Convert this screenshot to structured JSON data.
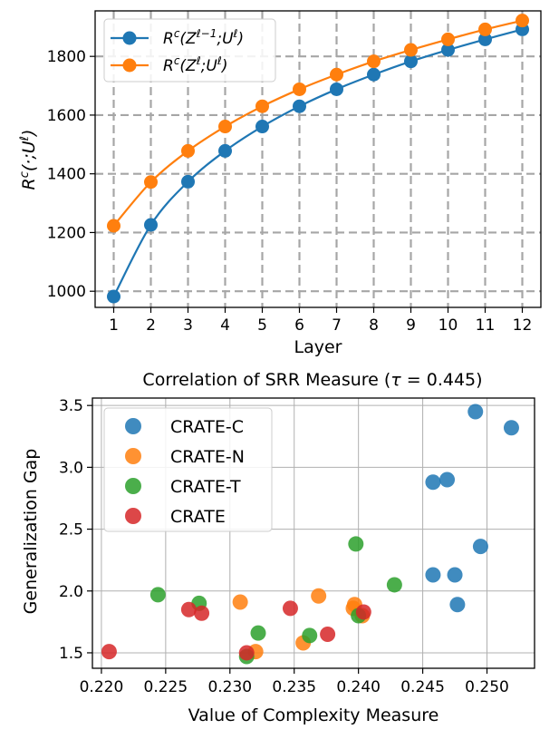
{
  "chart_data": [
    {
      "type": "line",
      "title": "",
      "xlabel": "Layer",
      "ylabel": "R^c(·;U^ℓ)",
      "xlim": [
        0.5,
        12.5
      ],
      "ylim": [
        945,
        1955
      ],
      "x": [
        1,
        2,
        3,
        4,
        5,
        6,
        7,
        8,
        9,
        10,
        11,
        12
      ],
      "xticks": [
        1,
        2,
        3,
        4,
        5,
        6,
        7,
        8,
        9,
        10,
        11,
        12
      ],
      "yticks": [
        1000,
        1200,
        1400,
        1600,
        1800
      ],
      "grid": true,
      "legend_position": "top-left",
      "series": [
        {
          "name": "R^c(Z^{ℓ−1};U^ℓ)",
          "color": "#1f77b4",
          "values": [
            982,
            1226,
            1373,
            1478,
            1561,
            1630,
            1688,
            1738,
            1783,
            1822,
            1858,
            1892
          ]
        },
        {
          "name": "R^c(Z^ℓ;U^ℓ)",
          "color": "#ff7f0e",
          "values": [
            1223,
            1372,
            1478,
            1561,
            1630,
            1688,
            1738,
            1783,
            1822,
            1858,
            1892,
            1922
          ]
        }
      ]
    },
    {
      "type": "scatter",
      "title": "Correlation of SRR Measure (τ = 0.445)",
      "xlabel": "Value of Complexity Measure",
      "ylabel": "Generalization Gap",
      "xlim": [
        0.2193,
        0.2537
      ],
      "ylim": [
        1.375,
        3.56
      ],
      "xticks": [
        0.22,
        0.225,
        0.23,
        0.235,
        0.24,
        0.245,
        0.25
      ],
      "yticks": [
        1.5,
        2.0,
        2.5,
        3.0,
        3.5
      ],
      "grid": true,
      "legend_position": "top-left",
      "series": [
        {
          "name": "CRATE-C",
          "color": "#1f77b4",
          "points": [
            [
              0.2491,
              3.45
            ],
            [
              0.2519,
              3.32
            ],
            [
              0.2458,
              2.88
            ],
            [
              0.2469,
              2.9
            ],
            [
              0.2495,
              2.36
            ],
            [
              0.2458,
              2.13
            ],
            [
              0.2475,
              2.13
            ],
            [
              0.2477,
              1.89
            ]
          ]
        },
        {
          "name": "CRATE-N",
          "color": "#ff7f0e",
          "points": [
            [
              0.2308,
              1.91
            ],
            [
              0.232,
              1.51
            ],
            [
              0.2357,
              1.58
            ],
            [
              0.2369,
              1.96
            ],
            [
              0.2396,
              1.86
            ],
            [
              0.2397,
              1.89
            ],
            [
              0.2403,
              1.8
            ]
          ]
        },
        {
          "name": "CRATE-T",
          "color": "#2ca02c",
          "points": [
            [
              0.2244,
              1.97
            ],
            [
              0.2276,
              1.9
            ],
            [
              0.2313,
              1.47
            ],
            [
              0.2322,
              1.66
            ],
            [
              0.2362,
              1.64
            ],
            [
              0.2398,
              2.38
            ],
            [
              0.24,
              1.8
            ],
            [
              0.2428,
              2.05
            ]
          ]
        },
        {
          "name": "CRATE",
          "color": "#d62728",
          "points": [
            [
              0.2206,
              1.51
            ],
            [
              0.2268,
              1.85
            ],
            [
              0.2278,
              1.82
            ],
            [
              0.2313,
              1.5
            ],
            [
              0.2347,
              1.86
            ],
            [
              0.2376,
              1.65
            ],
            [
              0.2404,
              1.83
            ]
          ]
        }
      ]
    }
  ]
}
